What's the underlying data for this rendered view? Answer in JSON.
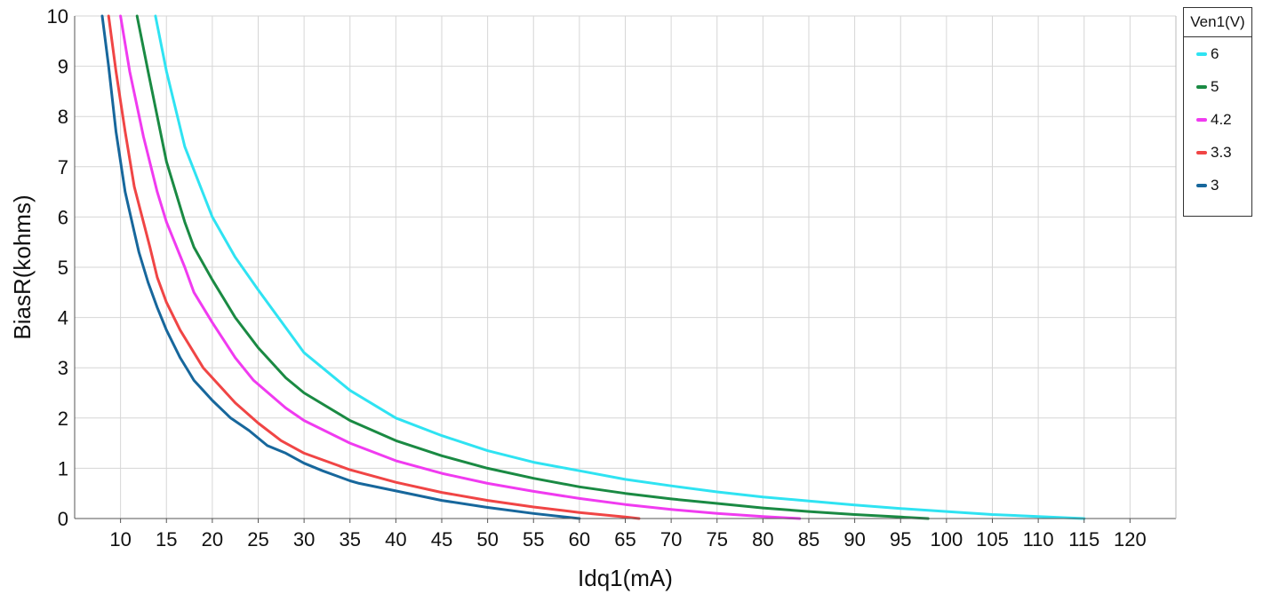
{
  "chart_data": {
    "type": "line",
    "xlabel": "Idq1(mA)",
    "ylabel": "BiasR(kohms)",
    "xlim": [
      5,
      125
    ],
    "ylim": [
      0,
      10
    ],
    "x_ticks": [
      "10",
      "15",
      "20",
      "25",
      "30",
      "35",
      "40",
      "45",
      "50",
      "55",
      "60",
      "65",
      "70",
      "75",
      "80",
      "85",
      "90",
      "95",
      "100",
      "105",
      "110",
      "115",
      "120"
    ],
    "y_ticks": [
      "0",
      "1",
      "2",
      "3",
      "4",
      "5",
      "6",
      "7",
      "8",
      "9",
      "10"
    ],
    "grid": true,
    "legend": {
      "title": "Ven1(V)",
      "placement": "top-right"
    },
    "series": [
      {
        "name": "6",
        "color": "#2fe3f2",
        "x": [
          13.8,
          15,
          17,
          20,
          22.5,
          25,
          30,
          35,
          40,
          45,
          50,
          55,
          60,
          65,
          70,
          75,
          80,
          85,
          90,
          95,
          100,
          105,
          110,
          115
        ],
        "y": [
          10,
          8.9,
          7.4,
          6.0,
          5.2,
          4.55,
          3.3,
          2.55,
          2.0,
          1.65,
          1.35,
          1.12,
          0.95,
          0.78,
          0.65,
          0.53,
          0.43,
          0.35,
          0.27,
          0.2,
          0.14,
          0.08,
          0.04,
          0
        ]
      },
      {
        "name": "5",
        "color": "#1a8a43",
        "x": [
          11.8,
          13,
          15,
          17,
          18,
          20,
          22.5,
          25,
          28,
          30,
          35,
          40,
          45,
          50,
          55,
          60,
          65,
          70,
          75,
          80,
          85,
          90,
          95,
          98
        ],
        "y": [
          10,
          8.9,
          7.1,
          5.9,
          5.4,
          4.75,
          4.0,
          3.4,
          2.8,
          2.5,
          1.95,
          1.55,
          1.25,
          1.0,
          0.8,
          0.63,
          0.5,
          0.39,
          0.3,
          0.21,
          0.14,
          0.08,
          0.03,
          0
        ]
      },
      {
        "name": "4.2",
        "color": "#f03bf0",
        "x": [
          10,
          11,
          12.5,
          14,
          15,
          17,
          18,
          20,
          22.5,
          24.5,
          28,
          30,
          35,
          40,
          45,
          50,
          55,
          60,
          65,
          70,
          75,
          80,
          84
        ],
        "y": [
          10,
          8.9,
          7.6,
          6.5,
          5.9,
          5.0,
          4.5,
          3.9,
          3.2,
          2.75,
          2.2,
          1.95,
          1.5,
          1.15,
          0.9,
          0.7,
          0.54,
          0.4,
          0.28,
          0.18,
          0.1,
          0.04,
          0
        ]
      },
      {
        "name": "3.3",
        "color": "#f04545",
        "x": [
          8.7,
          9.5,
          10.5,
          11.5,
          12.5,
          13.2,
          14,
          15,
          16.5,
          18,
          19,
          20,
          22.5,
          25,
          27.5,
          30,
          35,
          40,
          45,
          50,
          55,
          60,
          65,
          66.5
        ],
        "y": [
          10,
          8.9,
          7.7,
          6.6,
          5.9,
          5.4,
          4.8,
          4.3,
          3.75,
          3.3,
          3.0,
          2.8,
          2.3,
          1.9,
          1.55,
          1.3,
          0.97,
          0.72,
          0.52,
          0.36,
          0.23,
          0.12,
          0.03,
          0
        ]
      },
      {
        "name": "3",
        "color": "#17679c",
        "x": [
          8,
          8.7,
          9.5,
          10.5,
          11.5,
          12,
          13,
          14,
          15,
          16.5,
          17.5,
          18,
          19,
          20,
          22,
          24,
          25,
          26,
          28,
          30,
          32,
          35,
          36,
          40,
          45,
          50,
          55,
          59,
          60
        ],
        "y": [
          10,
          9.0,
          7.7,
          6.5,
          5.7,
          5.3,
          4.7,
          4.2,
          3.75,
          3.2,
          2.9,
          2.75,
          2.55,
          2.35,
          2.0,
          1.75,
          1.6,
          1.45,
          1.3,
          1.1,
          0.95,
          0.75,
          0.7,
          0.55,
          0.36,
          0.22,
          0.1,
          0.02,
          0
        ]
      }
    ]
  }
}
